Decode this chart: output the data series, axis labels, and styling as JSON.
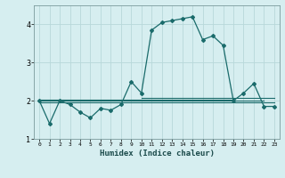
{
  "xlabel": "Humidex (Indice chaleur)",
  "background_color": "#d6eef0",
  "grid_color": "#b8d8da",
  "line_color": "#1a6b6b",
  "x_values": [
    0,
    1,
    2,
    3,
    4,
    5,
    6,
    7,
    8,
    9,
    10,
    11,
    12,
    13,
    14,
    15,
    16,
    17,
    18,
    19,
    20,
    21,
    22,
    23
  ],
  "main_line": [
    2.0,
    1.4,
    2.0,
    1.9,
    1.7,
    1.55,
    1.8,
    1.75,
    1.9,
    2.5,
    2.2,
    3.85,
    4.05,
    4.1,
    4.15,
    4.2,
    3.6,
    3.7,
    3.45,
    2.0,
    2.2,
    2.45,
    1.85,
    1.85
  ],
  "flat_line1_x": [
    0,
    19
  ],
  "flat_line1_y": [
    2.03,
    2.03
  ],
  "flat_line2_x": [
    0,
    22
  ],
  "flat_line2_y": [
    2.0,
    2.0
  ],
  "flat_line3_x": [
    0,
    23
  ],
  "flat_line3_y": [
    1.95,
    1.95
  ],
  "flat_line4_x": [
    10,
    23
  ],
  "flat_line4_y": [
    2.08,
    2.08
  ],
  "ylim": [
    1.0,
    4.5
  ],
  "yticks": [
    1,
    2,
    3,
    4
  ],
  "xlim": [
    -0.5,
    23.5
  ],
  "figsize": [
    3.2,
    2.0
  ],
  "dpi": 100
}
